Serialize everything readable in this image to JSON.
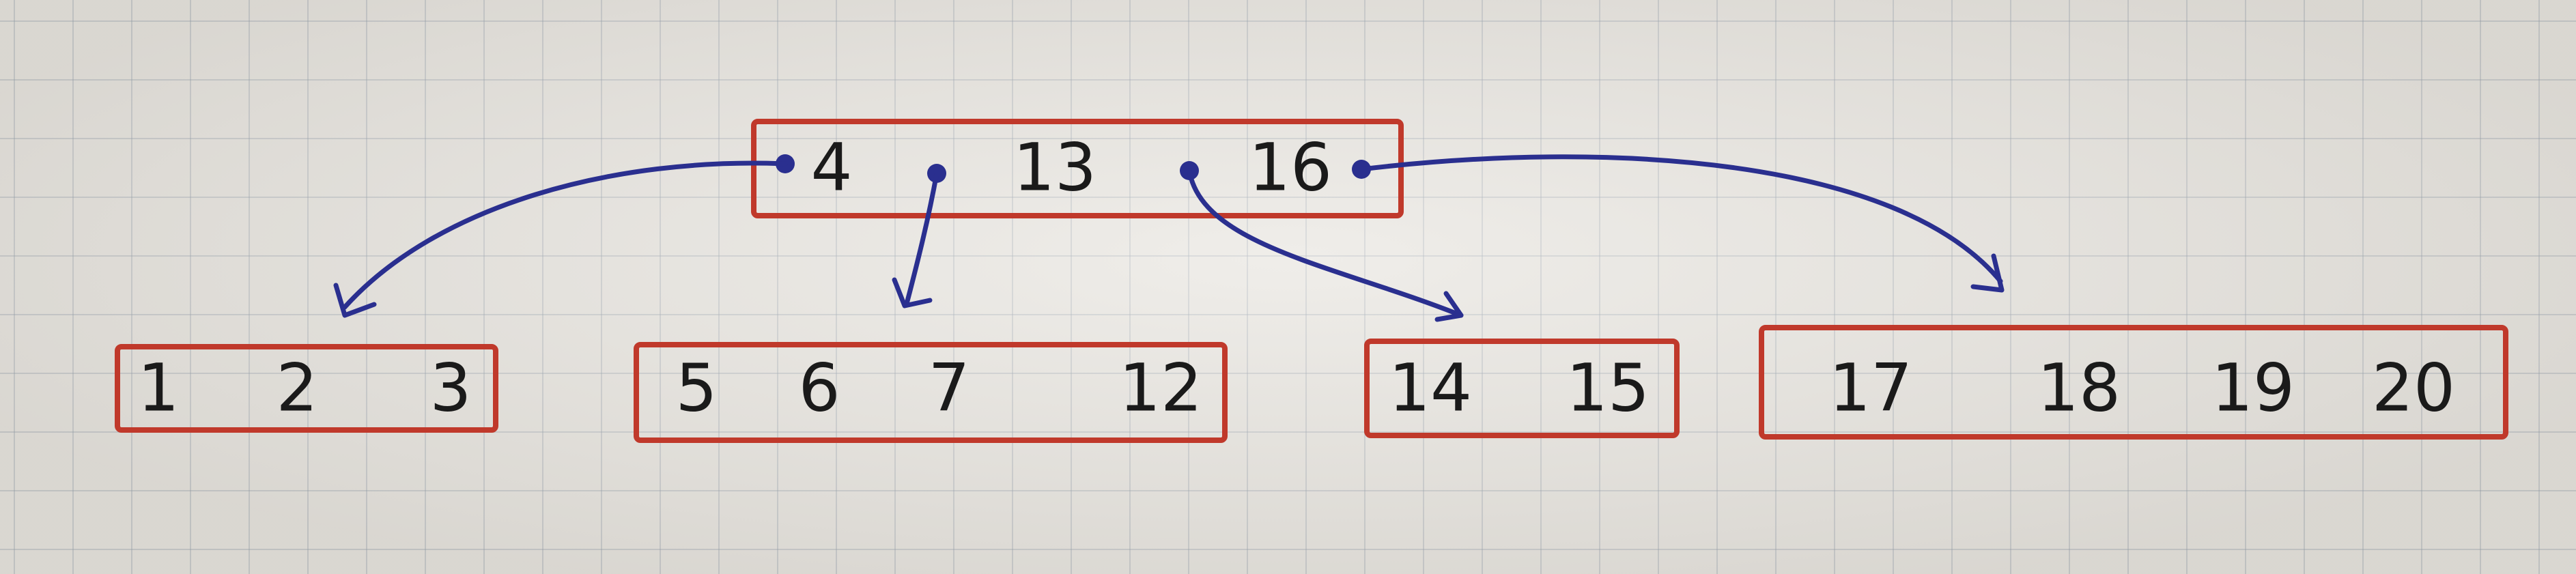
{
  "diagram": {
    "type": "b-tree",
    "root": {
      "keys": [
        "4",
        "13",
        "16"
      ]
    },
    "children": [
      {
        "keys": [
          "1",
          "2",
          "3"
        ]
      },
      {
        "keys": [
          "5",
          "6",
          "7",
          "12"
        ]
      },
      {
        "keys": [
          "14",
          "15"
        ]
      },
      {
        "keys": [
          "17",
          "18",
          "19",
          "20"
        ]
      }
    ],
    "colors": {
      "node_border": "#c0392b",
      "pointer": "#2a2f8f",
      "text": "#1a1a1a",
      "paper": "#e7e4de"
    }
  }
}
